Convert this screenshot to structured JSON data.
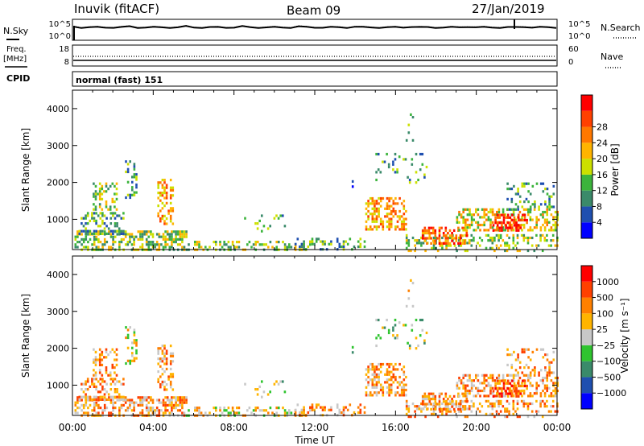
{
  "header": {
    "station": "Inuvik (fitACF)",
    "beam": "Beam 09",
    "date": "27/Jan/2019"
  },
  "labels": {
    "nsky": "N.Sky",
    "nsearch": "N.Search",
    "freq_top": "Freq.",
    "freq_unit": "[MHz]",
    "nave": "Nave",
    "cpid": "CPID",
    "cpid_text": "normal (fast) 151"
  },
  "ticks": {
    "noise_left": [
      "10^5",
      "10^0"
    ],
    "noise_right": [
      "10^5",
      "10^0"
    ],
    "freq_left": [
      "18",
      "8"
    ],
    "freq_right": [
      "60",
      "0"
    ]
  },
  "colors": {
    "power_scale": [
      "#0000ff",
      "#1f4fb0",
      "#3a8a6a",
      "#3cb43c",
      "#cce000",
      "#ffb400",
      "#ff7800",
      "#ff4000",
      "#ff0000"
    ],
    "velocity_scale": [
      "#0000ff",
      "#1f4fb0",
      "#3a8a6a",
      "#2fc42f",
      "#c8c8c8",
      "#ffb400",
      "#ff8000",
      "#ff4000",
      "#ff0000"
    ]
  },
  "chart_data": [
    {
      "type": "heatmap",
      "name": "power",
      "xlabel": "",
      "ylabel": "Slant Range [km]",
      "xlim": [
        "00:00",
        "24:00"
      ],
      "ylim": [
        180,
        4500
      ],
      "y_ticks": [
        "1000",
        "2000",
        "3000",
        "4000"
      ],
      "colorbar": {
        "label": "Power [dB]",
        "ticks": [
          "4",
          "8",
          "12",
          "16",
          "20",
          "24",
          "28"
        ]
      }
    },
    {
      "type": "heatmap",
      "name": "velocity",
      "xlabel": "Time UT",
      "ylabel": "Slant Range [km]",
      "xlim": [
        "00:00",
        "24:00"
      ],
      "ylim": [
        180,
        4500
      ],
      "x_ticks": [
        "00:00",
        "04:00",
        "08:00",
        "12:00",
        "16:00",
        "20:00",
        "00:00"
      ],
      "y_ticks": [
        "1000",
        "2000",
        "3000",
        "4000"
      ],
      "colorbar": {
        "label": "Velocity [m s⁻¹]",
        "ticks": [
          "1000",
          "500",
          "100",
          "25",
          "−25",
          "−100",
          "−500",
          "−1000"
        ]
      }
    }
  ]
}
